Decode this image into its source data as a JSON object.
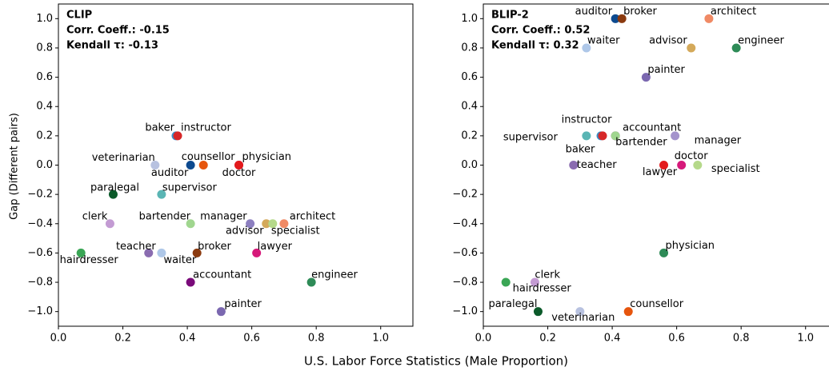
{
  "xlabel": "U.S. Labor Force Statistics (Male Proportion)",
  "ylabel": "Gap (Different pairs)",
  "chart_data": [
    {
      "type": "scatter",
      "title": "CLIP",
      "stats": [
        "Corr. Coeff.: -0.15",
        "Kendall τ: -0.13"
      ],
      "labels": [
        "hairdresser",
        "clerk",
        "paralegal",
        "teacher",
        "veterinarian",
        "waiter",
        "supervisor",
        "baker",
        "instructor",
        "auditor",
        "accountant",
        "bartender",
        "broker",
        "counsellor",
        "doctor",
        "physician",
        "manager",
        "advisor",
        "specialist",
        "architect",
        "lawyer",
        "engineer",
        "painter"
      ],
      "x": [
        0.07,
        0.16,
        0.17,
        0.28,
        0.3,
        0.32,
        0.32,
        0.365,
        0.37,
        0.41,
        0.41,
        0.41,
        0.43,
        0.45,
        0.56,
        0.56,
        0.595,
        0.645,
        0.665,
        0.7,
        0.615,
        0.785,
        0.505
      ],
      "values": [
        -0.6,
        -0.4,
        -0.2,
        -0.6,
        0.0,
        -0.6,
        -0.2,
        0.2,
        0.2,
        0.0,
        -0.8,
        -0.4,
        -0.6,
        0.0,
        0.0,
        0.0,
        -0.4,
        -0.4,
        -0.4,
        -0.4,
        -0.6,
        -0.8,
        -1.0
      ],
      "colors": [
        "#3aa655",
        "#c39bd3",
        "#0b5a2a",
        "#8a6cb0",
        "#b8c2e0",
        "#aec7e8",
        "#5ab5b4",
        "#3a8fc7",
        "#d62728",
        "#0d4a8f",
        "#7a0a7a",
        "#a0d68f",
        "#8b3a0f",
        "#e6550d",
        "#d6197a",
        "#e31a1c",
        "#8c7fc0",
        "#d4a95a",
        "#b5d98a",
        "#f08a65",
        "#d6197a",
        "#2e8b57",
        "#7b68b0"
      ],
      "xlim": [
        0,
        1.1
      ],
      "ylim": [
        -1.1,
        1.1
      ],
      "xticks": [
        {
          "value": 0,
          "label": "0.0"
        },
        {
          "value": 0.2,
          "label": "0.2"
        },
        {
          "value": 0.4,
          "label": "0.4"
        },
        {
          "value": 0.6,
          "label": "0.6"
        },
        {
          "value": 0.8,
          "label": "0.8"
        },
        {
          "value": 1,
          "label": "1.0"
        }
      ],
      "yticks": [
        {
          "value": -1,
          "label": "−1.0"
        },
        {
          "value": -0.8,
          "label": "−0.8"
        },
        {
          "value": -0.6,
          "label": "−0.6"
        },
        {
          "value": -0.4,
          "label": "−0.4"
        },
        {
          "value": -0.2,
          "label": "−0.2"
        },
        {
          "value": 0,
          "label": "0.0"
        },
        {
          "value": 0.2,
          "label": "0.2"
        },
        {
          "value": 0.4,
          "label": "0.4"
        },
        {
          "value": 0.6,
          "label": "0.6"
        },
        {
          "value": 0.8,
          "label": "0.8"
        },
        {
          "value": 1,
          "label": "1.0"
        }
      ]
    },
    {
      "type": "scatter",
      "title": "BLIP-2",
      "stats": [
        "Corr. Coeff.: 0.52",
        "Kendall τ: 0.32"
      ],
      "labels": [
        "auditor",
        "broker",
        "architect",
        "waiter",
        "advisor",
        "engineer",
        "painter",
        "supervisor",
        "baker",
        "instructor",
        "accountant",
        "bartender",
        "manager",
        "teacher",
        "lawyer",
        "doctor",
        "specialist",
        "physician",
        "clerk",
        "hairdresser",
        "paralegal",
        "veterinarian",
        "counsellor"
      ],
      "x": [
        0.41,
        0.43,
        0.7,
        0.32,
        0.645,
        0.785,
        0.505,
        0.32,
        0.365,
        0.37,
        0.41,
        0.41,
        0.595,
        0.28,
        0.56,
        0.615,
        0.665,
        0.56,
        0.16,
        0.07,
        0.17,
        0.3,
        0.45
      ],
      "values": [
        1.0,
        1.0,
        1.0,
        0.8,
        0.8,
        0.8,
        0.6,
        0.2,
        0.2,
        0.2,
        0.2,
        0.2,
        0.2,
        0.0,
        0.0,
        0.0,
        0.0,
        -0.6,
        -0.8,
        -0.8,
        -1.0,
        -1.0,
        -1.0
      ],
      "colors": [
        "#0d4a8f",
        "#8b3a0f",
        "#f08a65",
        "#aec7e8",
        "#d4a95a",
        "#2e8b57",
        "#7b68b0",
        "#5ab5b4",
        "#3a8fc7",
        "#d62728",
        "#7a0a7a",
        "#a0d68f",
        "#a493cc",
        "#8a6cb0",
        "#e31a1c",
        "#d6197a",
        "#b5d98a",
        "#2e8b57",
        "#c39bd3",
        "#3aa655",
        "#0b5a2a",
        "#b8c2e0",
        "#e6550d"
      ],
      "xlim": [
        0,
        1.1
      ],
      "ylim": [
        -1.1,
        1.1
      ],
      "xticks": [
        {
          "value": 0,
          "label": "0.0"
        },
        {
          "value": 0.2,
          "label": "0.2"
        },
        {
          "value": 0.4,
          "label": "0.4"
        },
        {
          "value": 0.6,
          "label": "0.6"
        },
        {
          "value": 0.8,
          "label": "0.8"
        },
        {
          "value": 1,
          "label": "1.0"
        }
      ],
      "yticks": [
        {
          "value": -1,
          "label": "−1.0"
        },
        {
          "value": -0.8,
          "label": "−0.8"
        },
        {
          "value": -0.6,
          "label": "−0.6"
        },
        {
          "value": -0.4,
          "label": "−0.4"
        },
        {
          "value": -0.2,
          "label": "−0.2"
        },
        {
          "value": 0,
          "label": "0.0"
        },
        {
          "value": 0.2,
          "label": "0.2"
        },
        {
          "value": 0.4,
          "label": "0.4"
        },
        {
          "value": 0.6,
          "label": "0.6"
        },
        {
          "value": 0.8,
          "label": "0.8"
        },
        {
          "value": 1,
          "label": "1.0"
        }
      ]
    }
  ]
}
